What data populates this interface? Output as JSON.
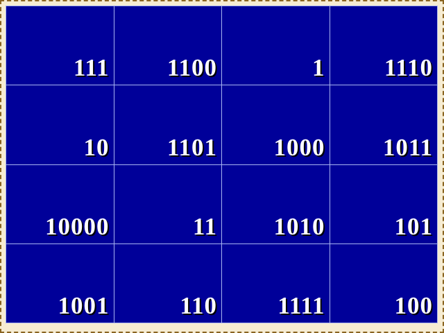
{
  "grid": [
    [
      "111",
      "1100",
      "1",
      "1110"
    ],
    [
      "10",
      "1101",
      "1000",
      "1011"
    ],
    [
      "10000",
      "11",
      "1010",
      "101"
    ],
    [
      "1001",
      "110",
      "1111",
      "100"
    ]
  ],
  "colors": {
    "cell_bg": "#000099",
    "text": "#ffffff",
    "background": "#f6ecd2"
  }
}
